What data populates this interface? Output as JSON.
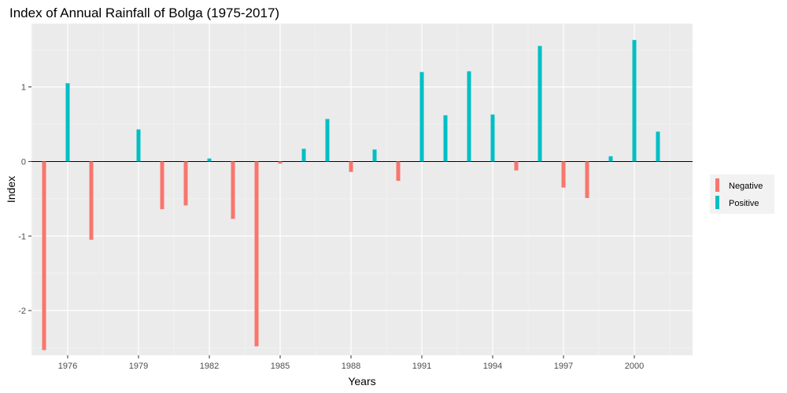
{
  "chart_data": {
    "type": "bar",
    "title": "Index of Annual Rainfall of Bolga (1975-2017)",
    "xlabel": "Years",
    "ylabel": "Index",
    "ylim": [
      -2.6,
      1.85
    ],
    "yticks": [
      -2,
      -1,
      0,
      1
    ],
    "xticks": [
      "1976",
      "1979",
      "1982",
      "1985",
      "1988",
      "1991",
      "1994",
      "1997",
      "2000"
    ],
    "x_tick_index": [
      1,
      4,
      7,
      10,
      13,
      16,
      19,
      22,
      25
    ],
    "x_categories": 28,
    "grid": true,
    "legend_position": "right",
    "series": [
      {
        "name": "Negative",
        "color": "#F8766D"
      },
      {
        "name": "Positive",
        "color": "#00BFC4"
      }
    ],
    "bars": [
      {
        "index": 0,
        "value": -2.53,
        "series": "Negative"
      },
      {
        "index": 1,
        "value": 1.05,
        "series": "Positive"
      },
      {
        "index": 2,
        "value": -1.05,
        "series": "Negative"
      },
      {
        "index": 4,
        "value": 0.43,
        "series": "Positive"
      },
      {
        "index": 5,
        "value": -0.64,
        "series": "Negative"
      },
      {
        "index": 6,
        "value": -0.59,
        "series": "Negative"
      },
      {
        "index": 7,
        "value": 0.04,
        "series": "Positive"
      },
      {
        "index": 8,
        "value": -0.77,
        "series": "Negative"
      },
      {
        "index": 9,
        "value": -2.48,
        "series": "Negative"
      },
      {
        "index": 10,
        "value": -0.03,
        "series": "Negative"
      },
      {
        "index": 11,
        "value": 0.17,
        "series": "Positive"
      },
      {
        "index": 12,
        "value": 0.57,
        "series": "Positive"
      },
      {
        "index": 13,
        "value": -0.14,
        "series": "Negative"
      },
      {
        "index": 14,
        "value": 0.16,
        "series": "Positive"
      },
      {
        "index": 15,
        "value": -0.26,
        "series": "Negative"
      },
      {
        "index": 16,
        "value": 1.2,
        "series": "Positive"
      },
      {
        "index": 17,
        "value": 0.62,
        "series": "Positive"
      },
      {
        "index": 18,
        "value": 1.21,
        "series": "Positive"
      },
      {
        "index": 19,
        "value": 0.63,
        "series": "Positive"
      },
      {
        "index": 20,
        "value": -0.12,
        "series": "Negative"
      },
      {
        "index": 21,
        "value": 1.55,
        "series": "Positive"
      },
      {
        "index": 22,
        "value": -0.35,
        "series": "Negative"
      },
      {
        "index": 23,
        "value": -0.49,
        "series": "Negative"
      },
      {
        "index": 24,
        "value": 0.07,
        "series": "Positive"
      },
      {
        "index": 25,
        "value": 1.63,
        "series": "Positive"
      },
      {
        "index": 26,
        "value": 0.4,
        "series": "Positive"
      }
    ]
  }
}
